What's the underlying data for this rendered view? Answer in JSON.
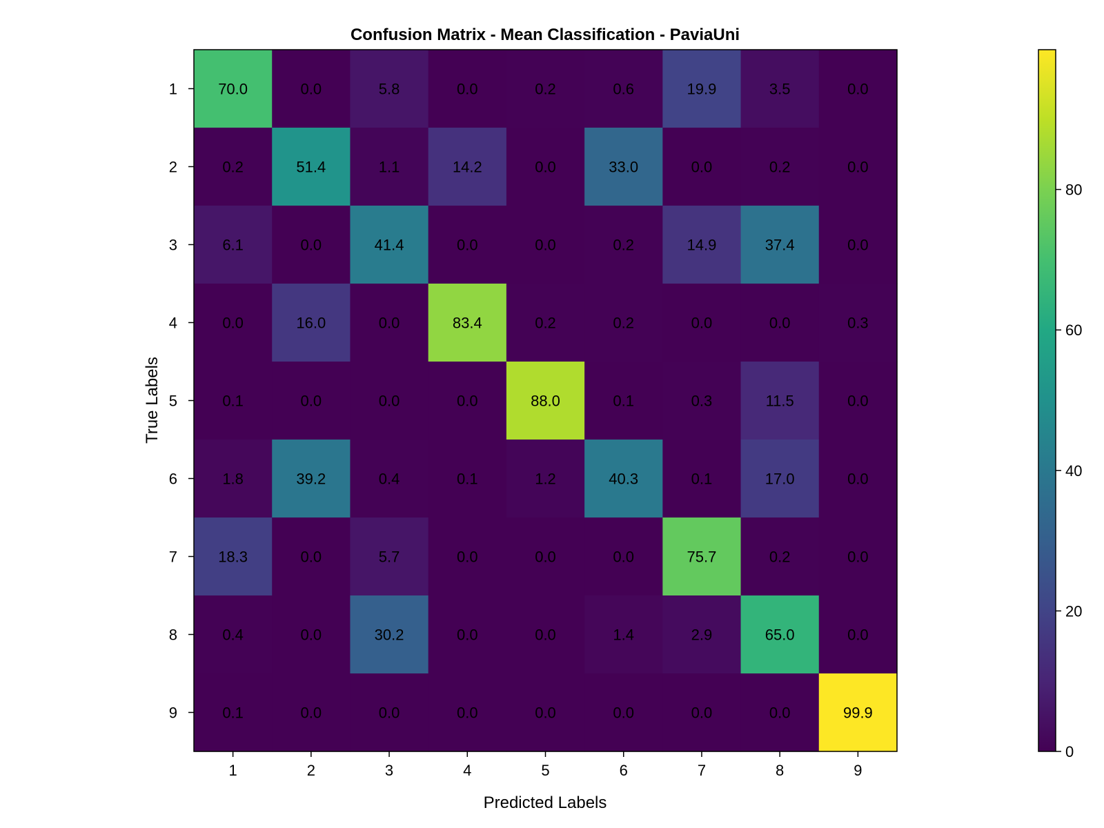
{
  "chart_data": {
    "type": "heatmap",
    "title": "Confusion Matrix - Mean Classification - PaviaUni",
    "xlabel": "Predicted Labels",
    "ylabel": "True Labels",
    "x_categories": [
      "1",
      "2",
      "3",
      "4",
      "5",
      "6",
      "7",
      "8",
      "9"
    ],
    "y_categories": [
      "1",
      "2",
      "3",
      "4",
      "5",
      "6",
      "7",
      "8",
      "9"
    ],
    "values": [
      [
        70.0,
        0.0,
        5.8,
        0.0,
        0.2,
        0.6,
        19.9,
        3.5,
        0.0
      ],
      [
        0.2,
        51.4,
        1.1,
        14.2,
        0.0,
        33.0,
        0.0,
        0.2,
        0.0
      ],
      [
        6.1,
        0.0,
        41.4,
        0.0,
        0.0,
        0.2,
        14.9,
        37.4,
        0.0
      ],
      [
        0.0,
        16.0,
        0.0,
        83.4,
        0.2,
        0.2,
        0.0,
        0.0,
        0.3
      ],
      [
        0.1,
        0.0,
        0.0,
        0.0,
        88.0,
        0.1,
        0.3,
        11.5,
        0.0
      ],
      [
        1.8,
        39.2,
        0.4,
        0.1,
        1.2,
        40.3,
        0.1,
        17.0,
        0.0
      ],
      [
        18.3,
        0.0,
        5.7,
        0.0,
        0.0,
        0.0,
        75.7,
        0.2,
        0.0
      ],
      [
        0.4,
        0.0,
        30.2,
        0.0,
        0.0,
        1.4,
        2.9,
        65.0,
        0.0
      ],
      [
        0.1,
        0.0,
        0.0,
        0.0,
        0.0,
        0.0,
        0.0,
        0.0,
        99.9
      ]
    ],
    "colormap": "viridis",
    "colorbar": {
      "range": [
        0,
        99.9
      ],
      "ticks": [
        0,
        20,
        40,
        60,
        80
      ]
    },
    "grid": false
  }
}
